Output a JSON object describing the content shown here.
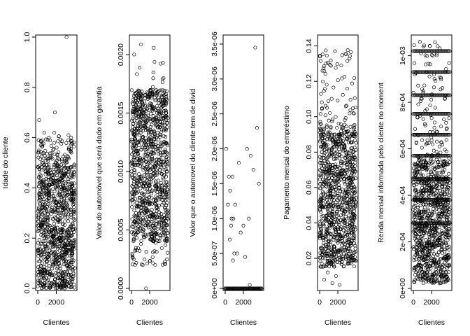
{
  "chart_data": [
    {
      "type": "scatter",
      "xlabel": "Clientes",
      "ylabel": "Idade do cliente",
      "xlim": [
        0,
        4000
      ],
      "ylim": [
        0,
        1.0
      ],
      "xticks": [
        "0",
        "2000"
      ],
      "xtick_values": [
        0,
        2000
      ],
      "yticks": [
        "0.0",
        "0.2",
        "0.4",
        "0.6",
        "0.8",
        "1.0"
      ],
      "ytick_values": [
        0.0,
        0.2,
        0.4,
        0.6,
        0.8,
        1.0
      ],
      "dense_band": [
        0.0,
        0.48
      ],
      "sparse_range": [
        0.48,
        0.62
      ],
      "outliers": [
        {
          "x": 150,
          "y": 0.67
        },
        {
          "x": 1850,
          "y": 0.7
        },
        {
          "x": 3100,
          "y": 1.0
        },
        {
          "x": 700,
          "y": 0.62
        },
        {
          "x": 1200,
          "y": 0.6
        },
        {
          "x": 3600,
          "y": 0.6
        }
      ]
    },
    {
      "type": "scatter",
      "xlabel": "Clientes",
      "ylabel": "Valor do automóvel que será dado em garantia",
      "xlim": [
        0,
        4000
      ],
      "ylim": [
        0,
        0.00215
      ],
      "xticks": [
        "0",
        "2000"
      ],
      "xtick_values": [
        0,
        2000
      ],
      "yticks": [
        "0.0000",
        "0.0005",
        "0.0010",
        "0.0015",
        "0.0020"
      ],
      "ytick_values": [
        0.0,
        0.0005,
        0.001,
        0.0015,
        0.002
      ],
      "dense_band": [
        0.0004,
        0.0017
      ],
      "sparse_range": [
        0.0002,
        0.0021
      ],
      "outliers": [
        {
          "x": 1600,
          "y": 0.0
        }
      ]
    },
    {
      "type": "scatter",
      "xlabel": "Clientes",
      "ylabel": "Valor que o automovel do cliente tem de divid",
      "xlim": [
        0,
        4000
      ],
      "ylim": [
        0,
        3.6e-06
      ],
      "xticks": [
        "0",
        "2000"
      ],
      "xtick_values": [
        0,
        2000
      ],
      "yticks": [
        "0e+00",
        "5.0e-07",
        "1.0e-06",
        "1.5e-06",
        "2.0e-06",
        "2.5e-06",
        "3.0e-06",
        "3.5e-06"
      ],
      "ytick_values": [
        0,
        5e-07,
        1e-06,
        1.5e-06,
        2e-06,
        2.5e-06,
        3e-06,
        3.5e-06
      ],
      "dense_band": [
        0,
        0
      ],
      "points": [
        {
          "x": 100,
          "y": 2e-06
        },
        {
          "x": 300,
          "y": 1.2e-06
        },
        {
          "x": 400,
          "y": 1.6e-06
        },
        {
          "x": 500,
          "y": 7e-07
        },
        {
          "x": 550,
          "y": 1.4e-06
        },
        {
          "x": 650,
          "y": 9e-07
        },
        {
          "x": 700,
          "y": 1e-06
        },
        {
          "x": 800,
          "y": 1.6e-06
        },
        {
          "x": 850,
          "y": 4e-07
        },
        {
          "x": 900,
          "y": 1e-06
        },
        {
          "x": 1000,
          "y": 5e-07
        },
        {
          "x": 1100,
          "y": 1.2e-06
        },
        {
          "x": 1300,
          "y": 5e-07
        },
        {
          "x": 1500,
          "y": 1.8e-06
        },
        {
          "x": 1700,
          "y": 8e-07
        },
        {
          "x": 2000,
          "y": 9e-07
        },
        {
          "x": 2200,
          "y": 4.5e-07
        },
        {
          "x": 2400,
          "y": 2e-06
        },
        {
          "x": 2600,
          "y": 1e-06
        },
        {
          "x": 2800,
          "y": 1.9e-06
        },
        {
          "x": 3100,
          "y": 1.7e-06
        },
        {
          "x": 3300,
          "y": 3.45e-06
        },
        {
          "x": 3500,
          "y": 2.3e-06
        },
        {
          "x": 3700,
          "y": 1.5e-06
        },
        {
          "x": 2700,
          "y": 5e-08
        }
      ]
    },
    {
      "type": "scatter",
      "xlabel": "Clientes",
      "ylabel": "Pagamento mensal do empréstimo",
      "xlim": [
        0,
        4000
      ],
      "ylim": [
        0.003,
        0.145
      ],
      "xticks": [
        "0",
        "2000"
      ],
      "xtick_values": [
        0,
        2000
      ],
      "yticks": [
        "0.02",
        "0.04",
        "0.06",
        "0.08",
        "0.10",
        "0.12",
        "0.14"
      ],
      "ytick_values": [
        0.02,
        0.04,
        0.06,
        0.08,
        0.1,
        0.12,
        0.14
      ],
      "dense_band": [
        0.015,
        0.09
      ],
      "sparse_range": [
        0.09,
        0.14
      ],
      "outliers": [
        {
          "x": 500,
          "y": 0.008
        },
        {
          "x": 900,
          "y": 0.012
        },
        {
          "x": 1400,
          "y": 0.006
        },
        {
          "x": 1800,
          "y": 0.01
        },
        {
          "x": 2200,
          "y": 0.005
        }
      ]
    },
    {
      "type": "scatter",
      "xlabel": "Clientes",
      "ylabel": "Renda mensal informada pelo cliente no moment",
      "xlim": [
        0,
        4000
      ],
      "ylim": [
        0,
        0.00108
      ],
      "xticks": [
        "0",
        "2000"
      ],
      "xtick_values": [
        0,
        2000
      ],
      "yticks": [
        "0e+00",
        "2e-04",
        "4e-04",
        "6e-04",
        "8e-04",
        "1e-03"
      ],
      "ytick_values": [
        0,
        0.0002,
        0.0004,
        0.0006,
        0.0008,
        0.001
      ],
      "dense_band": [
        2e-05,
        0.00055
      ],
      "sparse_range": [
        0.00055,
        0.00106
      ],
      "stripes": [
        0.00102,
        0.00093,
        0.00083,
        0.00075,
        0.00066,
        0.00057,
        0.00047,
        0.00038,
        0.00028
      ]
    }
  ]
}
